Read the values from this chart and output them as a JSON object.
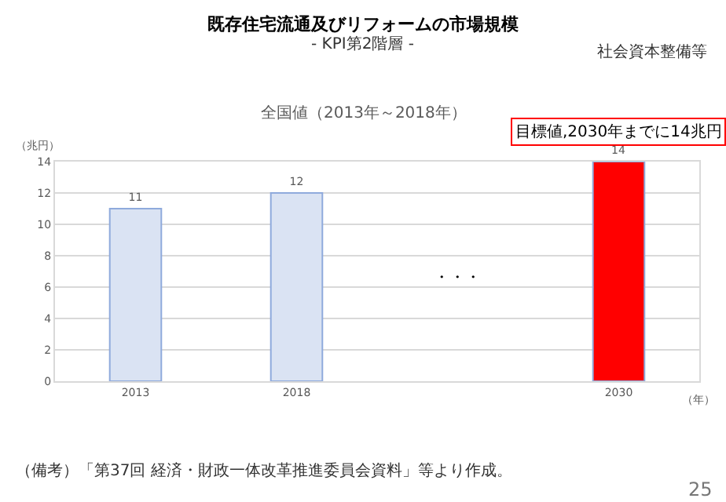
{
  "chart_data": {
    "type": "bar",
    "title": "既存住宅流通及びリフォームの市場規模",
    "subtitle": "- KPI第2階層 -",
    "categories": [
      "2013",
      "2018",
      null,
      "2030"
    ],
    "values": [
      11,
      12,
      null,
      14
    ],
    "colors": [
      "#dae3f3",
      "#dae3f3",
      "#dae3f3",
      "#ff0000"
    ],
    "data_labels": true,
    "ylabel": "（兆円）",
    "xlabel": "（年）",
    "ylim": [
      0,
      14
    ],
    "yticks": [
      0,
      2,
      4,
      6,
      8,
      10,
      12,
      14
    ],
    "grid": "y",
    "legend": false,
    "annotations": [
      "社会資本整備等",
      "全国値（2013年～2018年）",
      "目標値,2030年までに14兆円",
      "・・・",
      "（備考）「第37回 経済・財政一体改革推進委員会資料」等より作成。",
      "25"
    ]
  }
}
